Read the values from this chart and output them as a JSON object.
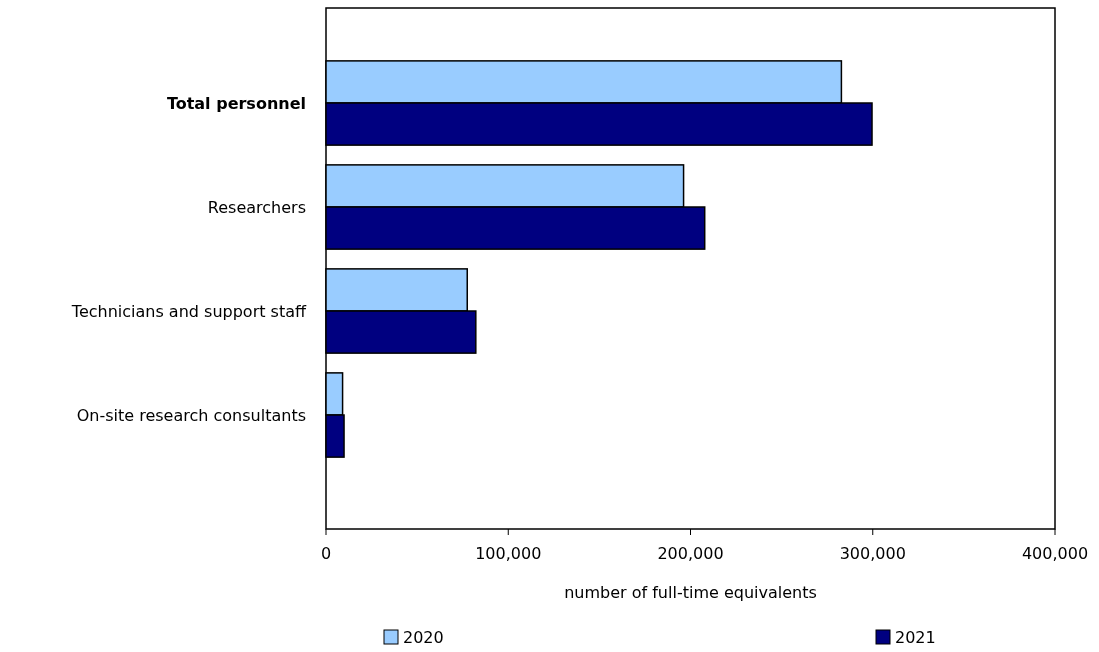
{
  "chart_data": {
    "type": "bar",
    "orientation": "horizontal",
    "categories": [
      "Total personnel",
      "Researchers",
      "Technicians and support staff",
      "On-site research consultants"
    ],
    "series": [
      {
        "name": "2020",
        "color": "#99ccff",
        "values": [
          282800,
          196200,
          77500,
          9100
        ]
      },
      {
        "name": "2021",
        "color": "#000080",
        "values": [
          299600,
          207800,
          82200,
          9900
        ]
      }
    ],
    "xlim": [
      0,
      400000
    ],
    "xticks": [
      {
        "value": 0,
        "label": "0"
      },
      {
        "value": 100000,
        "label": "100,000"
      },
      {
        "value": 200000,
        "label": "200,000"
      },
      {
        "value": 300000,
        "label": "300,000"
      },
      {
        "value": 400000,
        "label": "400,000"
      }
    ],
    "xlabel": "number of full-time equivalents",
    "legend": "bottom",
    "grid": false
  }
}
